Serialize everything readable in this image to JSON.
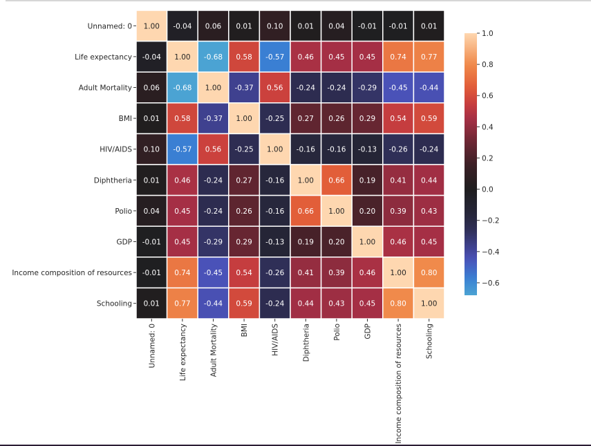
{
  "chart_data": {
    "type": "heatmap",
    "labels": [
      "Unnamed: 0",
      "Life expectancy",
      "Adult Mortality",
      "BMI",
      "HIV/AIDS",
      "Diphtheria",
      "Polio",
      "GDP",
      "Income composition of resources",
      "Schooling"
    ],
    "values": [
      [
        1.0,
        -0.04,
        0.06,
        0.01,
        0.1,
        0.01,
        0.04,
        -0.01,
        -0.01,
        0.01
      ],
      [
        -0.04,
        1.0,
        -0.68,
        0.58,
        -0.57,
        0.46,
        0.45,
        0.45,
        0.74,
        0.77
      ],
      [
        0.06,
        -0.68,
        1.0,
        -0.37,
        0.56,
        -0.24,
        -0.24,
        -0.29,
        -0.45,
        -0.44
      ],
      [
        0.01,
        0.58,
        -0.37,
        1.0,
        -0.25,
        0.27,
        0.26,
        0.29,
        0.54,
        0.59
      ],
      [
        0.1,
        -0.57,
        0.56,
        -0.25,
        1.0,
        -0.16,
        -0.16,
        -0.13,
        -0.26,
        -0.24
      ],
      [
        0.01,
        0.46,
        -0.24,
        0.27,
        -0.16,
        1.0,
        0.66,
        0.19,
        0.41,
        0.44
      ],
      [
        0.04,
        0.45,
        -0.24,
        0.26,
        -0.16,
        0.66,
        1.0,
        0.2,
        0.39,
        0.43
      ],
      [
        -0.01,
        0.45,
        -0.29,
        0.29,
        -0.13,
        0.19,
        0.2,
        1.0,
        0.46,
        0.45
      ],
      [
        -0.01,
        0.74,
        -0.45,
        0.54,
        -0.26,
        0.41,
        0.39,
        0.46,
        1.0,
        0.8
      ],
      [
        0.01,
        0.77,
        -0.44,
        0.59,
        -0.24,
        0.44,
        0.43,
        0.45,
        0.8,
        1.0
      ]
    ],
    "annotation_format": "0.00",
    "colormap": "icefire",
    "center": 0,
    "colorbar": {
      "range": [
        -0.68,
        1.0
      ],
      "ticks": [
        1.0,
        0.8,
        0.6,
        0.4,
        0.2,
        0.0,
        -0.2,
        -0.4,
        -0.6
      ],
      "tick_labels": [
        "1.0",
        "0.8",
        "0.6",
        "0.4",
        "0.2",
        "0.0",
        "−0.2",
        "−0.4",
        "−0.6"
      ],
      "position": "right"
    },
    "color_stops": [
      [
        -0.68,
        "#4ba3d3"
      ],
      [
        -0.57,
        "#3a7fd3"
      ],
      [
        -0.45,
        "#4a52b8"
      ],
      [
        -0.37,
        "#3f418f"
      ],
      [
        -0.25,
        "#2e2d52"
      ],
      [
        -0.15,
        "#262639"
      ],
      [
        0.0,
        "#1f1e1f"
      ],
      [
        0.15,
        "#3a1f25"
      ],
      [
        0.3,
        "#6a2733"
      ],
      [
        0.45,
        "#a52f45"
      ],
      [
        0.55,
        "#c83e3e"
      ],
      [
        0.65,
        "#e15b38"
      ],
      [
        0.8,
        "#f08a4b"
      ],
      [
        1.0,
        "#fed7b0"
      ]
    ]
  }
}
